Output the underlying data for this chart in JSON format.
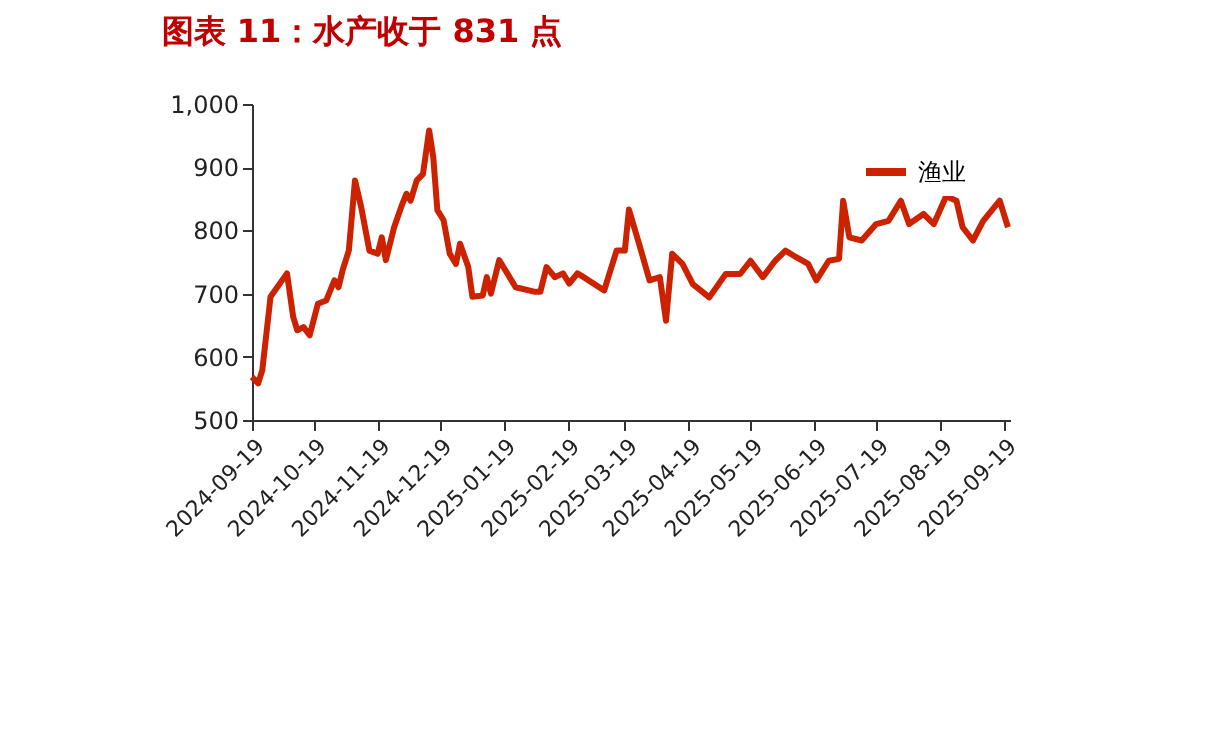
{
  "chart_data": {
    "type": "line",
    "title": "图表 11：水产收于 831 点",
    "x": [
      "2024-09-19",
      "2024-09-22",
      "2024-09-24",
      "2024-09-28",
      "2024-10-06",
      "2024-10-09",
      "2024-10-11",
      "2024-10-14",
      "2024-10-17",
      "2024-10-21",
      "2024-10-25",
      "2024-10-29",
      "2024-10-31",
      "2024-11-02",
      "2024-11-05",
      "2024-11-08",
      "2024-11-11",
      "2024-11-15",
      "2024-11-19",
      "2024-11-21",
      "2024-11-23",
      "2024-11-27",
      "2024-12-01",
      "2024-12-03",
      "2024-12-05",
      "2024-12-08",
      "2024-12-11",
      "2024-12-14",
      "2024-12-16",
      "2024-12-18",
      "2024-12-21",
      "2024-12-24",
      "2024-12-27",
      "2024-12-29",
      "2025-01-02",
      "2025-01-04",
      "2025-01-09",
      "2025-01-11",
      "2025-01-13",
      "2025-01-17",
      "2025-01-20",
      "2025-01-25",
      "2025-02-03",
      "2025-02-06",
      "2025-02-09",
      "2025-02-13",
      "2025-02-17",
      "2025-02-20",
      "2025-02-24",
      "2025-02-27",
      "2025-03-09",
      "2025-03-15",
      "2025-03-19",
      "2025-03-21",
      "2025-03-26",
      "2025-03-31",
      "2025-04-05",
      "2025-04-08",
      "2025-04-11",
      "2025-04-16",
      "2025-04-21",
      "2025-04-29",
      "2025-05-07",
      "2025-05-14",
      "2025-05-19",
      "2025-05-25",
      "2025-05-31",
      "2025-06-05",
      "2025-06-10",
      "2025-06-16",
      "2025-06-20",
      "2025-06-26",
      "2025-07-01",
      "2025-07-03",
      "2025-07-06",
      "2025-07-12",
      "2025-07-19",
      "2025-07-25",
      "2025-07-31",
      "2025-08-04",
      "2025-08-11",
      "2025-08-16",
      "2025-08-22",
      "2025-08-27",
      "2025-08-30",
      "2025-09-04",
      "2025-09-09",
      "2025-09-17",
      "2025-09-21"
    ],
    "series": [
      {
        "name": "渔业",
        "color": "#cc2200",
        "values": [
          568,
          558,
          579,
          695,
          732,
          663,
          642,
          647,
          634,
          684,
          689,
          721,
          710,
          737,
          768,
          879,
          837,
          768,
          763,
          789,
          753,
          805,
          842,
          858,
          847,
          879,
          889,
          958,
          916,
          832,
          816,
          763,
          747,
          779,
          742,
          695,
          697,
          726,
          700,
          753,
          737,
          710,
          703,
          703,
          742,
          726,
          732,
          716,
          732,
          726,
          705,
          768,
          768,
          833,
          778,
          721,
          726,
          657,
          763,
          747,
          715,
          694,
          731,
          731,
          752,
          726,
          752,
          768,
          758,
          747,
          721,
          752,
          755,
          847,
          789,
          784,
          810,
          815,
          847,
          810,
          826,
          810,
          854,
          847,
          805,
          784,
          815,
          847,
          805
        ]
      }
    ],
    "xlim": [
      "2024-09-19",
      "2025-09-22"
    ],
    "xticks": [
      "2024-09-19",
      "2024-10-19",
      "2024-11-19",
      "2024-12-19",
      "2025-01-19",
      "2025-02-19",
      "2025-03-19",
      "2025-04-19",
      "2025-05-19",
      "2025-06-19",
      "2025-07-19",
      "2025-08-19",
      "2025-09-19"
    ],
    "ylim": [
      500,
      1000
    ],
    "yticks": [
      500,
      600,
      700,
      800,
      900,
      {
        "value": 1000,
        "label": "1,000"
      }
    ],
    "grid": false,
    "legend": "top right",
    "marker": "none",
    "line_style": "solid"
  }
}
